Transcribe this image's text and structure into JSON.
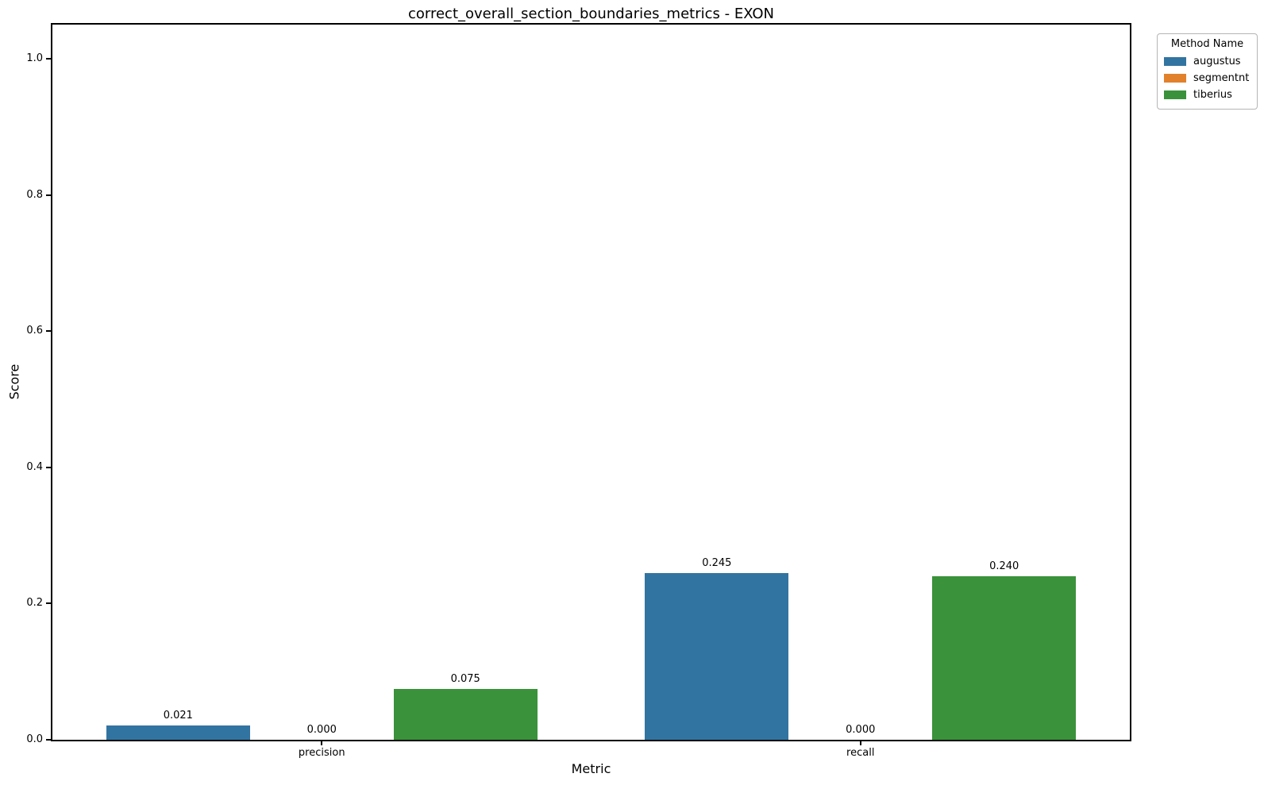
{
  "chart_data": {
    "type": "bar",
    "title": "correct_overall_section_boundaries_metrics - EXON",
    "xlabel": "Metric",
    "ylabel": "Score",
    "categories": [
      "precision",
      "recall"
    ],
    "series": [
      {
        "name": "augustus",
        "color": "#3274a1",
        "values": [
          0.021,
          0.245
        ]
      },
      {
        "name": "segmentnt",
        "color": "#e1812c",
        "values": [
          0.0,
          0.0
        ]
      },
      {
        "name": "tiberius",
        "color": "#3a923a",
        "values": [
          0.075,
          0.24
        ]
      }
    ],
    "bar_value_labels": [
      [
        "0.021",
        "0.245"
      ],
      [
        "0.000",
        "0.000"
      ],
      [
        "0.075",
        "0.240"
      ]
    ],
    "ylim": [
      0,
      1.05
    ],
    "yticks": [
      0.0,
      0.2,
      0.4,
      0.6,
      0.8,
      1.0
    ],
    "ytick_labels": [
      "0.0",
      "0.2",
      "0.4",
      "0.6",
      "0.8",
      "1.0"
    ],
    "grid": false,
    "legend": {
      "title": "Method Name",
      "position": "upper-right-outside"
    },
    "bar_group_width_fraction": 0.8,
    "spine_color": "#000000",
    "background_color": "#ffffff"
  }
}
